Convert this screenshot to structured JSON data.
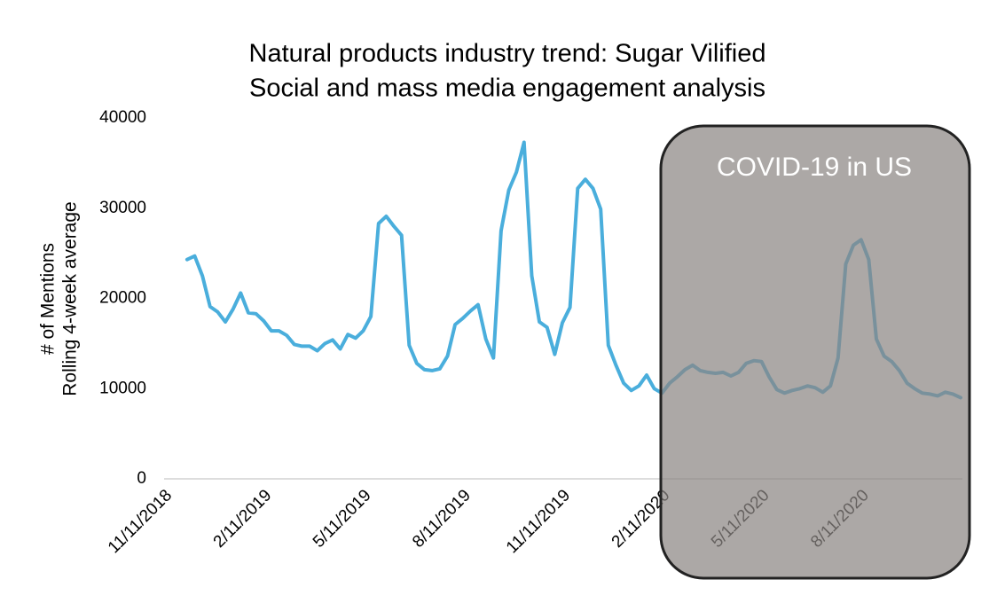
{
  "chart_data": {
    "type": "line",
    "title": [
      "Natural products industry trend: Sugar Vilified",
      "Social and mass media engagement analysis"
    ],
    "y_label": [
      "# of Mentions",
      "Rolling 4-week average"
    ],
    "annotation": "COVID-19 in US",
    "categories": [
      "11/11/2018",
      null,
      null,
      null,
      null,
      null,
      null,
      null,
      null,
      null,
      null,
      null,
      null,
      "2/11/2019",
      null,
      null,
      null,
      null,
      null,
      null,
      null,
      null,
      null,
      null,
      null,
      null,
      "5/11/2019",
      null,
      null,
      null,
      null,
      null,
      null,
      null,
      null,
      null,
      null,
      null,
      null,
      "8/11/2019",
      null,
      null,
      null,
      null,
      null,
      null,
      null,
      null,
      null,
      null,
      null,
      null,
      "11/11/2019",
      null,
      null,
      null,
      null,
      null,
      null,
      null,
      null,
      null,
      null,
      null,
      null,
      "2/11/2020",
      null,
      null,
      null,
      null,
      null,
      null,
      null,
      null,
      null,
      null,
      null,
      null,
      "5/11/2020",
      null,
      null,
      null,
      null,
      null,
      null,
      null,
      null,
      null,
      null,
      null,
      null,
      "8/11/2020",
      null,
      null,
      null,
      null,
      null,
      null,
      null,
      null,
      null,
      null,
      null,
      null,
      null
    ],
    "series": [
      {
        "name": "Mentions",
        "color": "#4aaedc",
        "values": [
          null,
          null,
          null,
          24300,
          24700,
          22500,
          19100,
          18500,
          17400,
          18800,
          20600,
          18400,
          18300,
          17500,
          16400,
          16400,
          15900,
          14900,
          14700,
          14700,
          14200,
          15000,
          15400,
          14400,
          16000,
          15600,
          16400,
          18000,
          28300,
          29100,
          28000,
          27000,
          14800,
          12800,
          12100,
          12000,
          12200,
          13600,
          17100,
          17800,
          18600,
          19300,
          15500,
          13400,
          27500,
          32000,
          34000,
          37300,
          22500,
          17400,
          16800,
          13800,
          17300,
          19000,
          32200,
          33200,
          32200,
          29900,
          14800,
          12600,
          10600,
          9800,
          10300,
          11500,
          10000,
          9500,
          10600,
          11300,
          12100,
          12600,
          12000,
          11800,
          11700,
          11800,
          11400,
          11800,
          12800,
          13100,
          13000,
          11300,
          9900,
          9500,
          9800,
          10000,
          10300,
          10100,
          9600,
          10300,
          13400,
          23800,
          25900,
          26500,
          24300,
          15500,
          13600,
          13000,
          12000,
          10600,
          10000,
          9500,
          9400,
          9200,
          9600,
          9400,
          9000
        ]
      }
    ],
    "ylim": [
      0,
      40000
    ],
    "yticks": [
      0,
      10000,
      20000,
      30000,
      40000
    ],
    "grid": false
  }
}
